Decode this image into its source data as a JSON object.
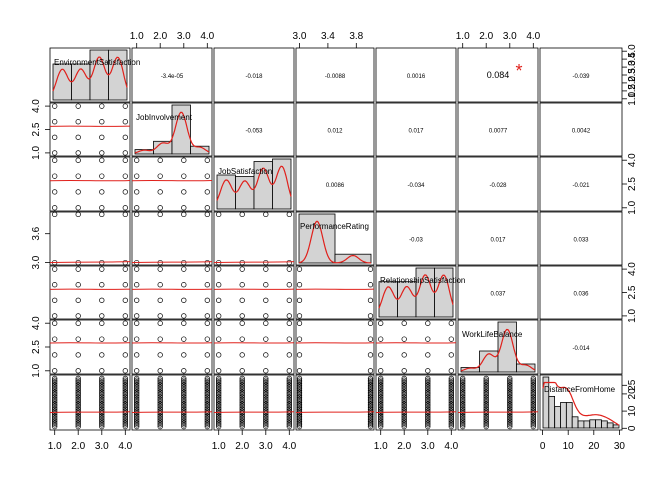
{
  "chart_data": {
    "type": "scatter",
    "variables": [
      "EnvironmentSatisfaction",
      "JobInvolvement",
      "JobSatisfaction",
      "PerformanceRating",
      "RelationshipSatisfaction",
      "WorkLifeBalance",
      "DistanceFromHome"
    ],
    "ranges": [
      [
        0.8,
        4.2
      ],
      [
        0.8,
        4.2
      ],
      [
        0.8,
        4.2
      ],
      [
        2.95,
        4.05
      ],
      [
        0.8,
        4.2
      ],
      [
        0.8,
        4.2
      ],
      [
        -1,
        31
      ]
    ],
    "top_axis": {
      "1": [
        "1.0",
        "2.0",
        "3.0",
        "4.0"
      ],
      "3": [
        "3.0",
        "3.4",
        "3.8"
      ],
      "5": [
        "1.0",
        "2.0",
        "3.0",
        "4.0"
      ]
    },
    "bottom_axis": {
      "0": [
        "1.0",
        "2.0",
        "3.0",
        "4.0"
      ],
      "2": [
        "1.0",
        "2.0",
        "3.0",
        "4.0"
      ],
      "4": [
        "1.0",
        "2.0",
        "3.0",
        "4.0"
      ],
      "6": [
        "0",
        "10",
        "20",
        "30"
      ]
    },
    "left_axis": {
      "1": [
        "1.0",
        "2.5",
        "4.0"
      ],
      "3": [
        "3.0",
        "3.6"
      ],
      "5": [
        "1.0",
        "2.5",
        "4.0"
      ]
    },
    "right_axis": {
      "0": [
        "1.0",
        "1.5",
        "2.0",
        "2.5",
        "3.0",
        "3.5",
        "4.0"
      ],
      "2": [
        "1.0",
        "2.5",
        "4.0"
      ],
      "4": [
        "1.0",
        "2.5",
        "4.0"
      ],
      "6": [
        "0",
        "10",
        "20",
        "25"
      ]
    },
    "correlations": [
      {
        "row": 0,
        "col": 1,
        "value": "-3.4e-05"
      },
      {
        "row": 0,
        "col": 2,
        "value": "-0.018"
      },
      {
        "row": 0,
        "col": 3,
        "value": "-0.0088"
      },
      {
        "row": 0,
        "col": 4,
        "value": "0.0016"
      },
      {
        "row": 0,
        "col": 5,
        "value": "0.084",
        "stars": "*"
      },
      {
        "row": 0,
        "col": 6,
        "value": "-0.039"
      },
      {
        "row": 1,
        "col": 2,
        "value": "-0.053"
      },
      {
        "row": 1,
        "col": 3,
        "value": "0.012"
      },
      {
        "row": 1,
        "col": 4,
        "value": "0.017"
      },
      {
        "row": 1,
        "col": 5,
        "value": "0.0077"
      },
      {
        "row": 1,
        "col": 6,
        "value": "0.0042"
      },
      {
        "row": 2,
        "col": 3,
        "value": "0.0086"
      },
      {
        "row": 2,
        "col": 4,
        "value": "-0.034"
      },
      {
        "row": 2,
        "col": 5,
        "value": "-0.028"
      },
      {
        "row": 2,
        "col": 6,
        "value": "-0.021"
      },
      {
        "row": 3,
        "col": 4,
        "value": "-0.03"
      },
      {
        "row": 3,
        "col": 5,
        "value": "0.017"
      },
      {
        "row": 3,
        "col": 6,
        "value": "0.033"
      },
      {
        "row": 4,
        "col": 5,
        "value": "0.037"
      },
      {
        "row": 4,
        "col": 6,
        "value": "0.036"
      },
      {
        "row": 5,
        "col": 6,
        "value": "-0.014"
      }
    ],
    "histograms": [
      {
        "bins": [
          1,
          2,
          3,
          4
        ],
        "heights": [
          0.72,
          0.72,
          1.0,
          1.0
        ]
      },
      {
        "bins": [
          1,
          2,
          3,
          4
        ],
        "heights": [
          0.09,
          0.26,
          1.0,
          0.16
        ]
      },
      {
        "bins": [
          1,
          2,
          3,
          4
        ],
        "heights": [
          0.68,
          0.65,
          0.95,
          1.0
        ]
      },
      {
        "bins": [
          3,
          4
        ],
        "heights": [
          1.0,
          0.18
        ]
      },
      {
        "bins": [
          1,
          2,
          3,
          4
        ],
        "heights": [
          0.72,
          0.72,
          1.0,
          1.0
        ]
      },
      {
        "bins": [
          1,
          2,
          3,
          4
        ],
        "heights": [
          0.09,
          0.42,
          1.0,
          0.16
        ]
      },
      {
        "bins": [
          0,
          2.5,
          5,
          7.5,
          10,
          12.5,
          15,
          17.5,
          20,
          22.5,
          25,
          27.5,
          30
        ],
        "heights": [
          1.0,
          0.62,
          0.42,
          0.5,
          0.5,
          0.22,
          0.14,
          0.14,
          0.16,
          0.16,
          0.14,
          0.1,
          0.06
        ]
      }
    ],
    "smoother_levels": [
      2.7,
      2.7,
      2.7,
      3.0,
      2.7,
      2.75,
      9.2
    ]
  }
}
